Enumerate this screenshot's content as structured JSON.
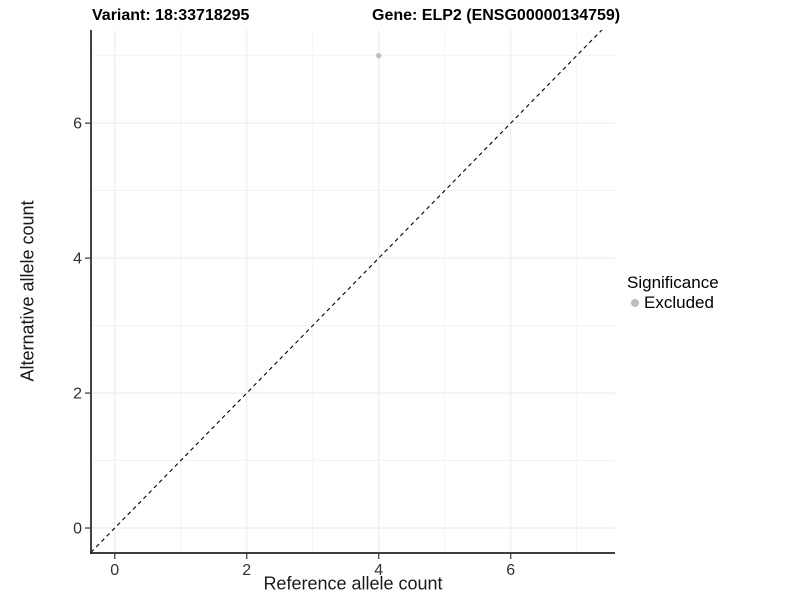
{
  "chart_data": {
    "type": "scatter",
    "title_left": "Variant: 18:33718295",
    "title_right": "Gene: ELP2 (ENSG00000134759)",
    "xlabel": "Reference allele count",
    "ylabel": "Alternative allele count",
    "xlim": [
      -0.36,
      7.58
    ],
    "ylim": [
      -0.37,
      7.38
    ],
    "xticks": [
      0,
      2,
      4,
      6
    ],
    "yticks": [
      0,
      2,
      4,
      6
    ],
    "xminor": [
      1,
      3,
      5,
      7
    ],
    "yminor": [
      1,
      3,
      5,
      7
    ],
    "grid": "major+minor",
    "points": [
      {
        "x": 4,
        "y": 7,
        "significance": "Excluded"
      }
    ],
    "identity_line": {
      "slope": 1,
      "intercept": 0,
      "linetype": "dashed",
      "color": "#000000"
    },
    "point_style": {
      "color": "#BEBEBE",
      "radius": 2.7
    },
    "legend": {
      "title": "Significance",
      "position": "right",
      "entries": [
        {
          "label": "Excluded",
          "color": "#BEBEBE"
        }
      ]
    },
    "colors": {
      "grid_major": "#EBEBEB",
      "grid_minor": "#F3F3F3",
      "axis_line": "#222222",
      "tick_mark": "#333333",
      "tick_text": "#303030"
    }
  }
}
